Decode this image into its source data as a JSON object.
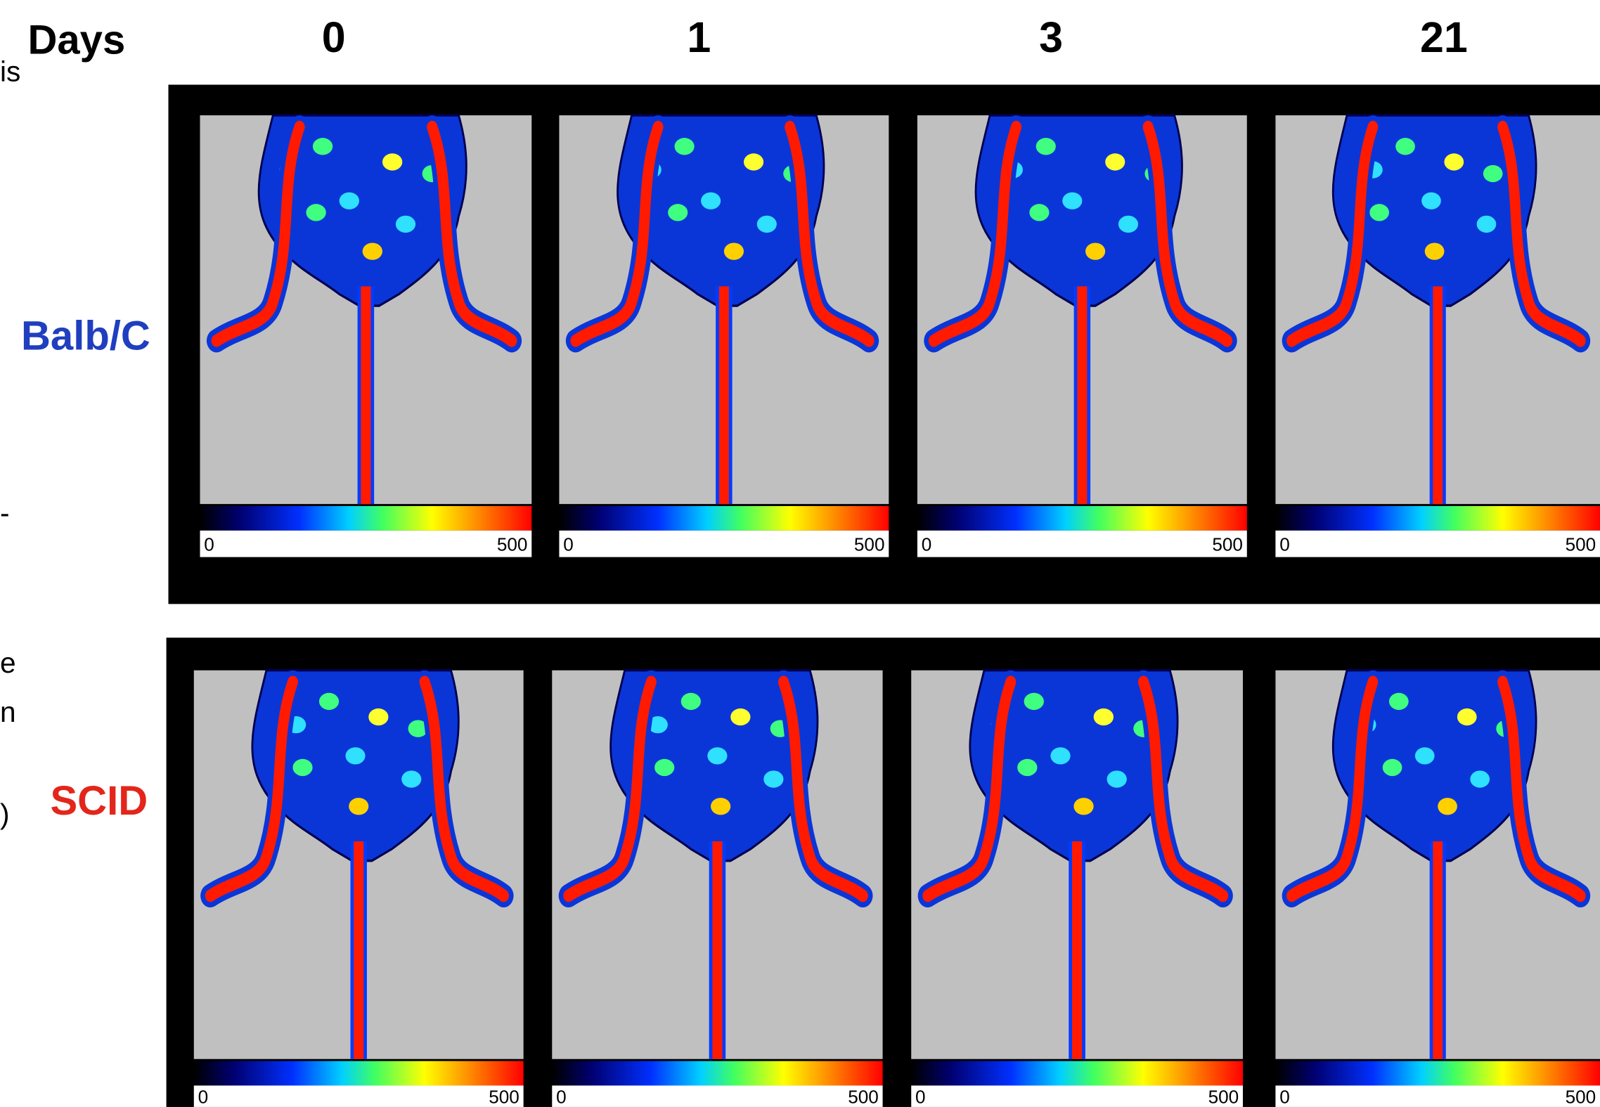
{
  "figure": {
    "axis_label": "Days",
    "columns": [
      "0",
      "1",
      "3",
      "21"
    ],
    "rows": [
      {
        "label": "Balb/C",
        "color": "#1f3fbf"
      },
      {
        "label": "SCID",
        "color": "#e3261b"
      }
    ],
    "colorbar": {
      "min": 0,
      "max": 500
    },
    "left_fragments": [
      "is",
      "-",
      "e",
      "n",
      ")"
    ]
  }
}
